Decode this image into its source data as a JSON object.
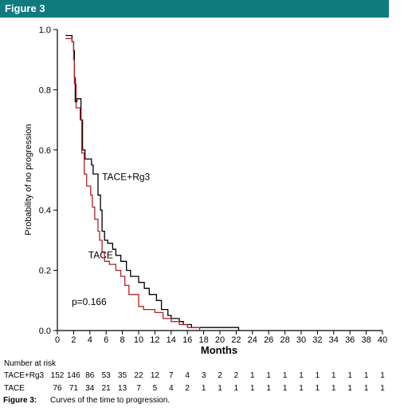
{
  "figure_label": "Figure 3",
  "caption": {
    "label": "Figure 3:",
    "text": "Curves of the time to progression."
  },
  "chart_data": {
    "type": "line",
    "xlabel": "Months",
    "ylabel": "Probability of no progression",
    "xlim": [
      0,
      40
    ],
    "ylim": [
      0,
      1.0
    ],
    "x_ticks": [
      0,
      2,
      4,
      6,
      8,
      10,
      12,
      14,
      16,
      18,
      20,
      22,
      24,
      26,
      28,
      30,
      32,
      34,
      36,
      38,
      40
    ],
    "y_ticks": [
      0.0,
      0.2,
      0.4,
      0.6,
      0.8,
      1.0
    ],
    "annotation": "p=0.166",
    "series": [
      {
        "name": "TACE+Rg3",
        "color": "#000000",
        "label_at": [
          5.5,
          0.5
        ],
        "points": [
          [
            1.0,
            0.98
          ],
          [
            1.8,
            0.98
          ],
          [
            1.8,
            0.96
          ],
          [
            2.0,
            0.96
          ],
          [
            2.0,
            0.93
          ],
          [
            2.1,
            0.93
          ],
          [
            2.1,
            0.84
          ],
          [
            2.2,
            0.84
          ],
          [
            2.2,
            0.76
          ],
          [
            2.4,
            0.76
          ],
          [
            2.4,
            0.77
          ],
          [
            2.9,
            0.77
          ],
          [
            2.9,
            0.7
          ],
          [
            3.1,
            0.7
          ],
          [
            3.1,
            0.6
          ],
          [
            3.4,
            0.6
          ],
          [
            3.4,
            0.57
          ],
          [
            4.2,
            0.57
          ],
          [
            4.2,
            0.55
          ],
          [
            4.4,
            0.55
          ],
          [
            4.4,
            0.52
          ],
          [
            5.0,
            0.52
          ],
          [
            5.0,
            0.45
          ],
          [
            5.3,
            0.45
          ],
          [
            5.3,
            0.4
          ],
          [
            5.5,
            0.4
          ],
          [
            5.5,
            0.33
          ],
          [
            5.8,
            0.33
          ],
          [
            5.8,
            0.3
          ],
          [
            6.2,
            0.3
          ],
          [
            6.2,
            0.29
          ],
          [
            6.8,
            0.29
          ],
          [
            6.8,
            0.27
          ],
          [
            7.2,
            0.27
          ],
          [
            7.2,
            0.25
          ],
          [
            7.8,
            0.25
          ],
          [
            7.8,
            0.23
          ],
          [
            8.5,
            0.23
          ],
          [
            8.5,
            0.2
          ],
          [
            9.0,
            0.2
          ],
          [
            9.0,
            0.18
          ],
          [
            10.0,
            0.18
          ],
          [
            10.0,
            0.16
          ],
          [
            10.7,
            0.16
          ],
          [
            10.7,
            0.14
          ],
          [
            11.3,
            0.14
          ],
          [
            11.3,
            0.12
          ],
          [
            12.2,
            0.12
          ],
          [
            12.2,
            0.1
          ],
          [
            12.8,
            0.1
          ],
          [
            12.8,
            0.07
          ],
          [
            13.6,
            0.07
          ],
          [
            13.6,
            0.05
          ],
          [
            14.0,
            0.05
          ],
          [
            14.0,
            0.04
          ],
          [
            15.0,
            0.04
          ],
          [
            15.0,
            0.03
          ],
          [
            15.5,
            0.03
          ],
          [
            15.5,
            0.02
          ],
          [
            16.5,
            0.02
          ],
          [
            16.5,
            0.01
          ],
          [
            18.0,
            0.01
          ],
          [
            18.0,
            0.01
          ],
          [
            22.3,
            0.01
          ],
          [
            22.3,
            0.0
          ]
        ]
      },
      {
        "name": "TACE",
        "color": "#b22222",
        "label_at": [
          3.8,
          0.24
        ],
        "points": [
          [
            1.0,
            0.97
          ],
          [
            1.8,
            0.97
          ],
          [
            1.8,
            0.96
          ],
          [
            2.0,
            0.96
          ],
          [
            2.0,
            0.9
          ],
          [
            2.1,
            0.9
          ],
          [
            2.1,
            0.82
          ],
          [
            2.3,
            0.82
          ],
          [
            2.3,
            0.74
          ],
          [
            2.8,
            0.74
          ],
          [
            2.8,
            0.7
          ],
          [
            3.0,
            0.7
          ],
          [
            3.0,
            0.59
          ],
          [
            3.3,
            0.59
          ],
          [
            3.3,
            0.52
          ],
          [
            3.6,
            0.52
          ],
          [
            3.6,
            0.48
          ],
          [
            4.1,
            0.48
          ],
          [
            4.1,
            0.45
          ],
          [
            4.3,
            0.45
          ],
          [
            4.3,
            0.41
          ],
          [
            4.6,
            0.41
          ],
          [
            4.6,
            0.37
          ],
          [
            5.0,
            0.37
          ],
          [
            5.0,
            0.33
          ],
          [
            5.2,
            0.33
          ],
          [
            5.2,
            0.3
          ],
          [
            5.5,
            0.3
          ],
          [
            5.5,
            0.26
          ],
          [
            5.8,
            0.26
          ],
          [
            5.8,
            0.23
          ],
          [
            6.4,
            0.23
          ],
          [
            6.4,
            0.22
          ],
          [
            7.2,
            0.22
          ],
          [
            7.2,
            0.2
          ],
          [
            7.8,
            0.2
          ],
          [
            7.8,
            0.18
          ],
          [
            8.3,
            0.18
          ],
          [
            8.3,
            0.15
          ],
          [
            8.8,
            0.15
          ],
          [
            8.8,
            0.12
          ],
          [
            10.0,
            0.12
          ],
          [
            10.0,
            0.08
          ],
          [
            10.6,
            0.08
          ],
          [
            10.6,
            0.07
          ],
          [
            12.0,
            0.07
          ],
          [
            12.0,
            0.06
          ],
          [
            13.0,
            0.06
          ],
          [
            13.0,
            0.04
          ],
          [
            14.0,
            0.04
          ],
          [
            14.0,
            0.03
          ],
          [
            15.0,
            0.03
          ],
          [
            15.0,
            0.02
          ],
          [
            16.0,
            0.02
          ],
          [
            16.0,
            0.01
          ],
          [
            17.5,
            0.01
          ],
          [
            17.5,
            0.0
          ]
        ]
      }
    ]
  },
  "risk_table": {
    "title": "Number at risk",
    "rows": [
      {
        "label": "TACE+Rg3",
        "values": [
          "152",
          "146",
          "86",
          "53",
          "35",
          "22",
          "12",
          "7",
          "4",
          "3",
          "2",
          "2",
          "1",
          "1",
          "1",
          "1",
          "1",
          "1",
          "1",
          "1",
          "1"
        ]
      },
      {
        "label": "TACE",
        "values": [
          "76",
          "71",
          "34",
          "21",
          "13",
          "7",
          "5",
          "4",
          "2",
          "1",
          "1",
          "1",
          "1",
          "1",
          "1",
          "1",
          "1",
          "1",
          "1",
          "1",
          "1"
        ]
      }
    ]
  }
}
